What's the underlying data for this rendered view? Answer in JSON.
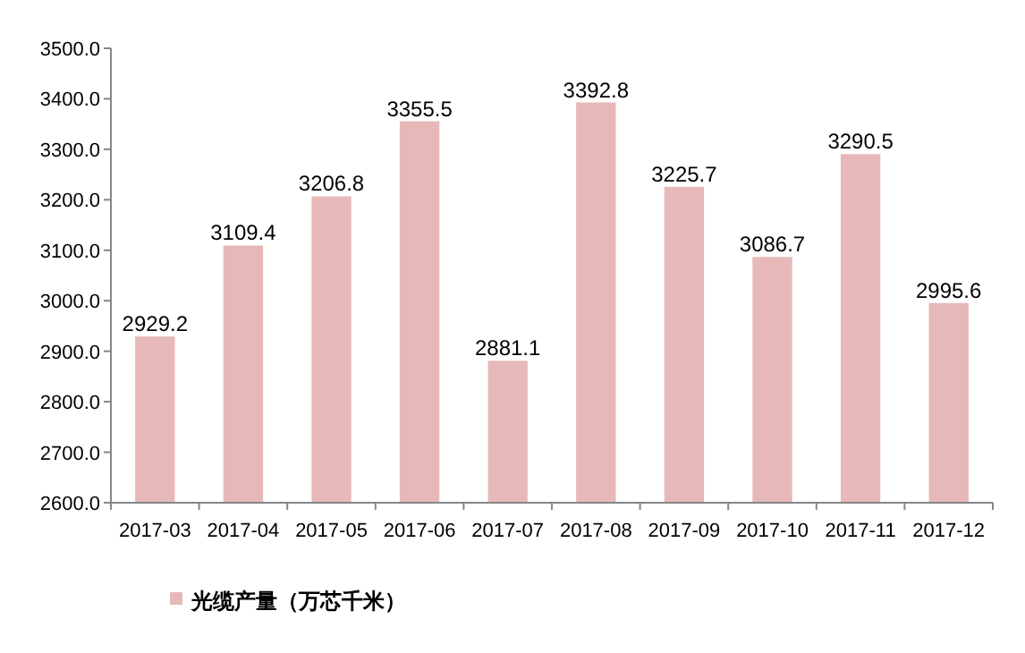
{
  "chart_data": {
    "type": "bar",
    "categories": [
      "2017-03",
      "2017-04",
      "2017-05",
      "2017-06",
      "2017-07",
      "2017-08",
      "2017-09",
      "2017-10",
      "2017-11",
      "2017-12"
    ],
    "series": [
      {
        "name": "光缆产量（万芯千米）",
        "color": "#e6b9b8",
        "values": [
          2929.2,
          3109.4,
          3206.8,
          3355.5,
          2881.1,
          3392.8,
          3225.7,
          3086.7,
          3290.5,
          2995.6
        ]
      }
    ],
    "ylim": [
      2600,
      3500
    ],
    "yticks": [
      {
        "value": 2600,
        "label": "2600.0"
      },
      {
        "value": 2700,
        "label": "2700.0"
      },
      {
        "value": 2800,
        "label": "2800.0"
      },
      {
        "value": 2900,
        "label": "2900.0"
      },
      {
        "value": 3000,
        "label": "3000.0"
      },
      {
        "value": 3100,
        "label": "3100.0"
      },
      {
        "value": 3200,
        "label": "3200.0"
      },
      {
        "value": 3300,
        "label": "3300.0"
      },
      {
        "value": 3400,
        "label": "3400.0"
      },
      {
        "value": 3500,
        "label": "3500.0"
      }
    ],
    "data_labels": true,
    "legend": "bottom"
  }
}
